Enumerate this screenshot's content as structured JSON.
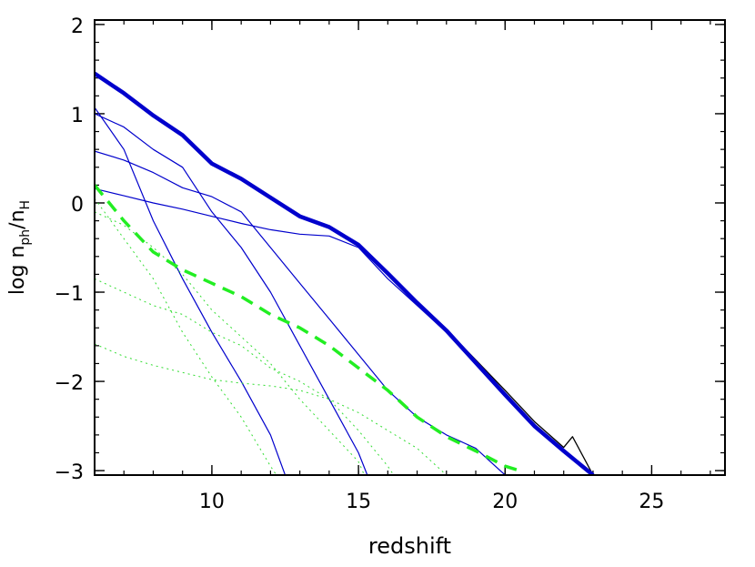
{
  "chart_data": {
    "type": "line",
    "xlabel": "redshift",
    "ylabel": {
      "prefix": "log n",
      "sub1": "ph",
      "slash": "/n",
      "sub2": "H"
    },
    "xlim": [
      6,
      27.5
    ],
    "ylim": [
      -3.05,
      2.05
    ],
    "xticks": [
      {
        "value": 10,
        "label": "10"
      },
      {
        "value": 15,
        "label": "15"
      },
      {
        "value": 20,
        "label": "20"
      },
      {
        "value": 25,
        "label": "25"
      }
    ],
    "yticks": [
      {
        "value": 2,
        "label": "2"
      },
      {
        "value": 1,
        "label": "1"
      },
      {
        "value": 0,
        "label": "0"
      },
      {
        "value": -1,
        "label": "−1"
      },
      {
        "value": -2,
        "label": "−2"
      },
      {
        "value": -3,
        "label": "−3"
      }
    ],
    "minor_x_step": 1,
    "minor_y_step": 0.2,
    "grid": false,
    "series": [
      {
        "color": "#000000",
        "width": 1.3,
        "dash": "",
        "points": [
          [
            6.0,
            1.46
          ],
          [
            7.0,
            1.24
          ],
          [
            8.0,
            0.98
          ],
          [
            9.0,
            0.76
          ],
          [
            10.0,
            0.44
          ],
          [
            11.0,
            0.27
          ],
          [
            12.0,
            0.06
          ],
          [
            13.0,
            -0.15
          ],
          [
            14.0,
            -0.27
          ],
          [
            15.0,
            -0.46
          ],
          [
            16.0,
            -0.78
          ],
          [
            17.0,
            -1.12
          ],
          [
            18.0,
            -1.42
          ],
          [
            19.0,
            -1.76
          ],
          [
            20.0,
            -2.1
          ],
          [
            21.0,
            -2.45
          ],
          [
            22.0,
            -2.74
          ],
          [
            22.3,
            -2.62
          ],
          [
            23.0,
            -3.05
          ]
        ]
      },
      {
        "color": "#0000cc",
        "width": 4.5,
        "dash": "",
        "points": [
          [
            6.0,
            1.45
          ],
          [
            7.0,
            1.23
          ],
          [
            8.0,
            0.98
          ],
          [
            9.0,
            0.76
          ],
          [
            10.0,
            0.44
          ],
          [
            11.0,
            0.27
          ],
          [
            12.0,
            0.06
          ],
          [
            13.0,
            -0.15
          ],
          [
            14.0,
            -0.27
          ],
          [
            15.0,
            -0.47
          ],
          [
            16.0,
            -0.79
          ],
          [
            17.0,
            -1.12
          ],
          [
            18.0,
            -1.43
          ],
          [
            19.0,
            -1.79
          ],
          [
            20.0,
            -2.15
          ],
          [
            21.0,
            -2.5
          ],
          [
            22.0,
            -2.78
          ],
          [
            23.0,
            -3.05
          ]
        ]
      },
      {
        "color": "#0000cc",
        "width": 1.2,
        "dash": "",
        "points": [
          [
            6.0,
            1.07
          ],
          [
            7.0,
            0.6
          ],
          [
            8.0,
            -0.2
          ],
          [
            9.0,
            -0.85
          ],
          [
            10.0,
            -1.45
          ],
          [
            11.0,
            -2.0
          ],
          [
            12.0,
            -2.6
          ],
          [
            12.5,
            -3.05
          ]
        ]
      },
      {
        "color": "#0000cc",
        "width": 1.2,
        "dash": "",
        "points": [
          [
            6.0,
            1.0
          ],
          [
            7.0,
            0.85
          ],
          [
            8.0,
            0.6
          ],
          [
            9.0,
            0.4
          ],
          [
            10.0,
            -0.1
          ],
          [
            11.0,
            -0.5
          ],
          [
            12.0,
            -1.0
          ],
          [
            13.0,
            -1.6
          ],
          [
            14.0,
            -2.2
          ],
          [
            15.0,
            -2.8
          ],
          [
            15.3,
            -3.05
          ]
        ]
      },
      {
        "color": "#0000cc",
        "width": 1.2,
        "dash": "",
        "points": [
          [
            6.0,
            0.58
          ],
          [
            7.0,
            0.48
          ],
          [
            8.0,
            0.34
          ],
          [
            9.0,
            0.17
          ],
          [
            10.0,
            0.07
          ],
          [
            11.0,
            -0.1
          ],
          [
            12.0,
            -0.5
          ],
          [
            13.0,
            -0.9
          ],
          [
            14.0,
            -1.3
          ],
          [
            15.0,
            -1.7
          ],
          [
            16.0,
            -2.1
          ],
          [
            17.0,
            -2.4
          ],
          [
            18.0,
            -2.6
          ],
          [
            19.0,
            -2.75
          ],
          [
            20.0,
            -3.05
          ]
        ]
      },
      {
        "color": "#0000cc",
        "width": 1.2,
        "dash": "",
        "points": [
          [
            6.0,
            0.16
          ],
          [
            7.0,
            0.08
          ],
          [
            8.0,
            0.0
          ],
          [
            9.0,
            -0.07
          ],
          [
            10.0,
            -0.15
          ],
          [
            11.0,
            -0.23
          ],
          [
            12.0,
            -0.3
          ],
          [
            13.0,
            -0.35
          ],
          [
            14.0,
            -0.37
          ],
          [
            15.0,
            -0.5
          ],
          [
            16.0,
            -0.85
          ],
          [
            17.0,
            -1.15
          ],
          [
            18.0,
            -1.45
          ],
          [
            19.0,
            -1.78
          ],
          [
            20.0,
            -2.13
          ],
          [
            21.0,
            -2.48
          ],
          [
            22.0,
            -2.78
          ],
          [
            23.0,
            -3.05
          ]
        ]
      },
      {
        "color": "#22ee22",
        "width": 3.5,
        "dash": "14,9",
        "points": [
          [
            6.0,
            0.2
          ],
          [
            7.0,
            -0.2
          ],
          [
            8.0,
            -0.55
          ],
          [
            9.0,
            -0.75
          ],
          [
            10.0,
            -0.9
          ],
          [
            11.0,
            -1.05
          ],
          [
            12.0,
            -1.25
          ],
          [
            13.0,
            -1.4
          ],
          [
            14.0,
            -1.6
          ],
          [
            15.0,
            -1.85
          ],
          [
            16.0,
            -2.1
          ],
          [
            17.0,
            -2.4
          ],
          [
            18.0,
            -2.62
          ],
          [
            19.0,
            -2.78
          ],
          [
            20.0,
            -2.95
          ],
          [
            20.5,
            -3.0
          ]
        ]
      },
      {
        "color": "#33dd33",
        "width": 1.0,
        "dash": "2,4",
        "points": [
          [
            6.0,
            0.05
          ],
          [
            7.0,
            -0.4
          ],
          [
            8.0,
            -0.85
          ],
          [
            9.0,
            -1.45
          ],
          [
            10.0,
            -1.95
          ],
          [
            11.0,
            -2.4
          ],
          [
            12.0,
            -2.95
          ],
          [
            12.2,
            -3.05
          ]
        ]
      },
      {
        "color": "#33dd33",
        "width": 1.0,
        "dash": "2,4",
        "points": [
          [
            6.0,
            -0.1
          ],
          [
            7.0,
            -0.25
          ],
          [
            8.0,
            -0.5
          ],
          [
            9.0,
            -0.8
          ],
          [
            10.0,
            -1.2
          ],
          [
            11.0,
            -1.5
          ],
          [
            12.0,
            -1.8
          ],
          [
            13.0,
            -2.2
          ],
          [
            14.0,
            -2.55
          ],
          [
            15.0,
            -2.9
          ],
          [
            15.2,
            -3.05
          ]
        ]
      },
      {
        "color": "#33dd33",
        "width": 1.0,
        "dash": "2,4",
        "points": [
          [
            6.0,
            -0.85
          ],
          [
            7.0,
            -1.0
          ],
          [
            8.0,
            -1.15
          ],
          [
            9.0,
            -1.25
          ],
          [
            10.0,
            -1.45
          ],
          [
            11.0,
            -1.6
          ],
          [
            12.0,
            -1.85
          ],
          [
            13.0,
            -2.0
          ],
          [
            14.0,
            -2.2
          ],
          [
            15.0,
            -2.55
          ],
          [
            16.0,
            -2.95
          ],
          [
            16.2,
            -3.05
          ]
        ]
      },
      {
        "color": "#33dd33",
        "width": 1.0,
        "dash": "2,4",
        "points": [
          [
            6.0,
            -1.58
          ],
          [
            7.0,
            -1.72
          ],
          [
            8.0,
            -1.82
          ],
          [
            9.0,
            -1.9
          ],
          [
            10.0,
            -1.98
          ],
          [
            11.0,
            -2.02
          ],
          [
            12.0,
            -2.05
          ],
          [
            13.0,
            -2.1
          ],
          [
            14.0,
            -2.2
          ],
          [
            15.0,
            -2.35
          ],
          [
            16.0,
            -2.55
          ],
          [
            17.0,
            -2.75
          ],
          [
            18.0,
            -3.05
          ]
        ]
      }
    ]
  }
}
